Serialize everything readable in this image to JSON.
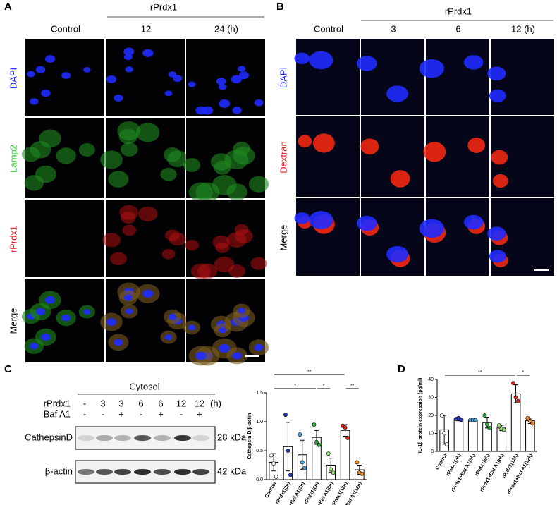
{
  "panel_a": {
    "label": "A",
    "group": "rPrdx1",
    "columns": [
      "Control",
      "12",
      "24 (h)"
    ],
    "rows": [
      "DAPI",
      "Lamp2",
      "rPrdx1",
      "Merge"
    ]
  },
  "panel_b": {
    "label": "B",
    "group": "rPrdx1",
    "columns": [
      "Control",
      "3",
      "6",
      "12 (h)"
    ],
    "rows": [
      "DAPI",
      "Dextran",
      "Merge"
    ]
  },
  "panel_c_blot": {
    "label": "C",
    "group": "Cytosol",
    "lane_rows": [
      {
        "name": "rPrdx1",
        "lanes": [
          "-",
          "3",
          "3",
          "6",
          "6",
          "12",
          "12"
        ],
        "unit": "(h)"
      },
      {
        "name": "Baf A1",
        "lanes": [
          "-",
          "-",
          "+",
          "-",
          "+",
          "-",
          "+"
        ]
      }
    ],
    "bands": [
      {
        "name": "CathepsinD",
        "size": "28 kDa"
      },
      {
        "name": "β-actin",
        "size": "42 kDa"
      }
    ]
  },
  "panel_d_label": "D",
  "chart_data": [
    {
      "type": "bar",
      "y_label": "Cathepsin D/β-actin",
      "categories": [
        "Control",
        "rPrdx1(3h)",
        "rPrdx1+Baf A1(3h)",
        "rPrdx1(6h)",
        "rPrdx1+Baf A1(6h)",
        "rPrdx1(12h)",
        "rPrdx1+Baf A1(12h)"
      ],
      "values": [
        0.3,
        0.57,
        0.43,
        0.73,
        0.25,
        0.85,
        0.17
      ],
      "errors": [
        0.15,
        0.42,
        0.25,
        0.12,
        0.12,
        0.1,
        0.08
      ],
      "points": [
        [
          0.42,
          0.28,
          0.05
        ],
        [
          1.12,
          0.5,
          0.08
        ],
        [
          0.78,
          0.3,
          0.2
        ],
        [
          0.95,
          0.65,
          0.6
        ],
        [
          0.45,
          0.18,
          0.12
        ],
        [
          0.93,
          0.9,
          0.72
        ],
        [
          0.3,
          0.12,
          0.1
        ]
      ],
      "point_colors": [
        "#ffffff",
        "#2a3fbf",
        "#4fa8e0",
        "#2eaa3c",
        "#9ee07a",
        "#d9261c",
        "#f08a2a"
      ],
      "ylim": [
        0,
        1.5
      ],
      "yticks": [
        {
          "value": 0,
          "label": "0.0"
        },
        0.5,
        {
          "value": 1,
          "label": "1.0"
        },
        1.5
      ],
      "significance": [
        {
          "between": [
            "Control",
            "rPrdx1(6h)"
          ],
          "label": "*"
        },
        {
          "between": [
            "rPrdx1(6h)",
            "rPrdx1+Baf A1(6h)"
          ],
          "label": "*"
        },
        {
          "between": [
            "rPrdx1(12h)",
            "rPrdx1+Baf A1(12h)"
          ],
          "label": "**"
        },
        {
          "between": [
            "Control",
            "rPrdx1(12h)"
          ],
          "label": "**"
        }
      ]
    },
    {
      "type": "bar",
      "y_label": "IL-1β protein expression (pg/ml)",
      "categories": [
        "Control",
        "rPrdx1(3h)",
        "rPrdx1+Baf A1(3h)",
        "rPrdx1(6h)",
        "rPrdx1+Baf A1(6h)",
        "rPrdx1(12h)",
        "rPrdx1+Baf A1(12h)"
      ],
      "values": [
        12,
        18,
        17.5,
        16,
        13,
        32,
        17
      ],
      "errors": [
        8,
        1,
        0.5,
        3,
        1.5,
        5,
        1.5
      ],
      "points": [
        [
          20,
          10,
          4
        ],
        [
          18,
          18.5,
          17.5
        ],
        [
          17.5,
          17.5,
          17.5
        ],
        [
          20,
          15,
          13
        ],
        [
          14.5,
          12.5,
          12
        ],
        [
          38,
          30,
          28
        ],
        [
          18.5,
          17,
          15.5
        ]
      ],
      "point_colors": [
        "#ffffff",
        "#2a3fbf",
        "#4fa8e0",
        "#2eaa3c",
        "#9ee07a",
        "#d9261c",
        "#f08a2a"
      ],
      "ylim": [
        0,
        40
      ],
      "yticks": [
        0,
        10,
        20,
        30,
        40
      ],
      "significance": [
        {
          "between": [
            "Control",
            "rPrdx1(12h)"
          ],
          "label": "**"
        },
        {
          "between": [
            "rPrdx1(12h)",
            "rPrdx1+Baf A1(12h)"
          ],
          "label": "*"
        }
      ]
    }
  ]
}
